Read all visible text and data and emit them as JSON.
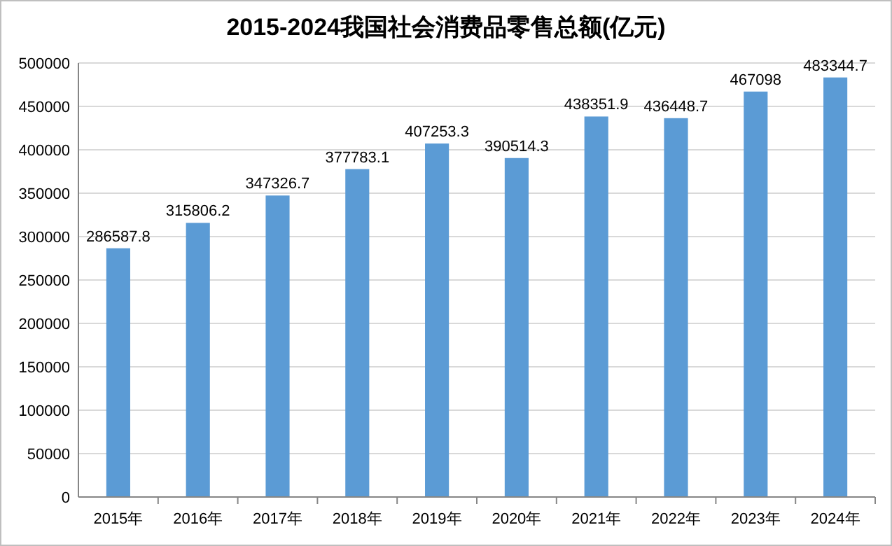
{
  "chart_data": {
    "type": "bar",
    "title": "2015-2024我国社会消费品零售总额(亿元)",
    "categories": [
      "2015年",
      "2016年",
      "2017年",
      "2018年",
      "2019年",
      "2020年",
      "2021年",
      "2022年",
      "2023年",
      "2024年"
    ],
    "values": [
      286587.8,
      315806.2,
      347326.7,
      377783.1,
      407253.3,
      390514.3,
      438351.9,
      436448.7,
      467098,
      483344.7
    ],
    "color": "#5b9bd5",
    "ylim": [
      0,
      500000
    ],
    "yticks": [
      0,
      50000,
      100000,
      150000,
      200000,
      250000,
      300000,
      350000,
      400000,
      450000,
      500000
    ],
    "grid": "y",
    "data_labels": true
  }
}
